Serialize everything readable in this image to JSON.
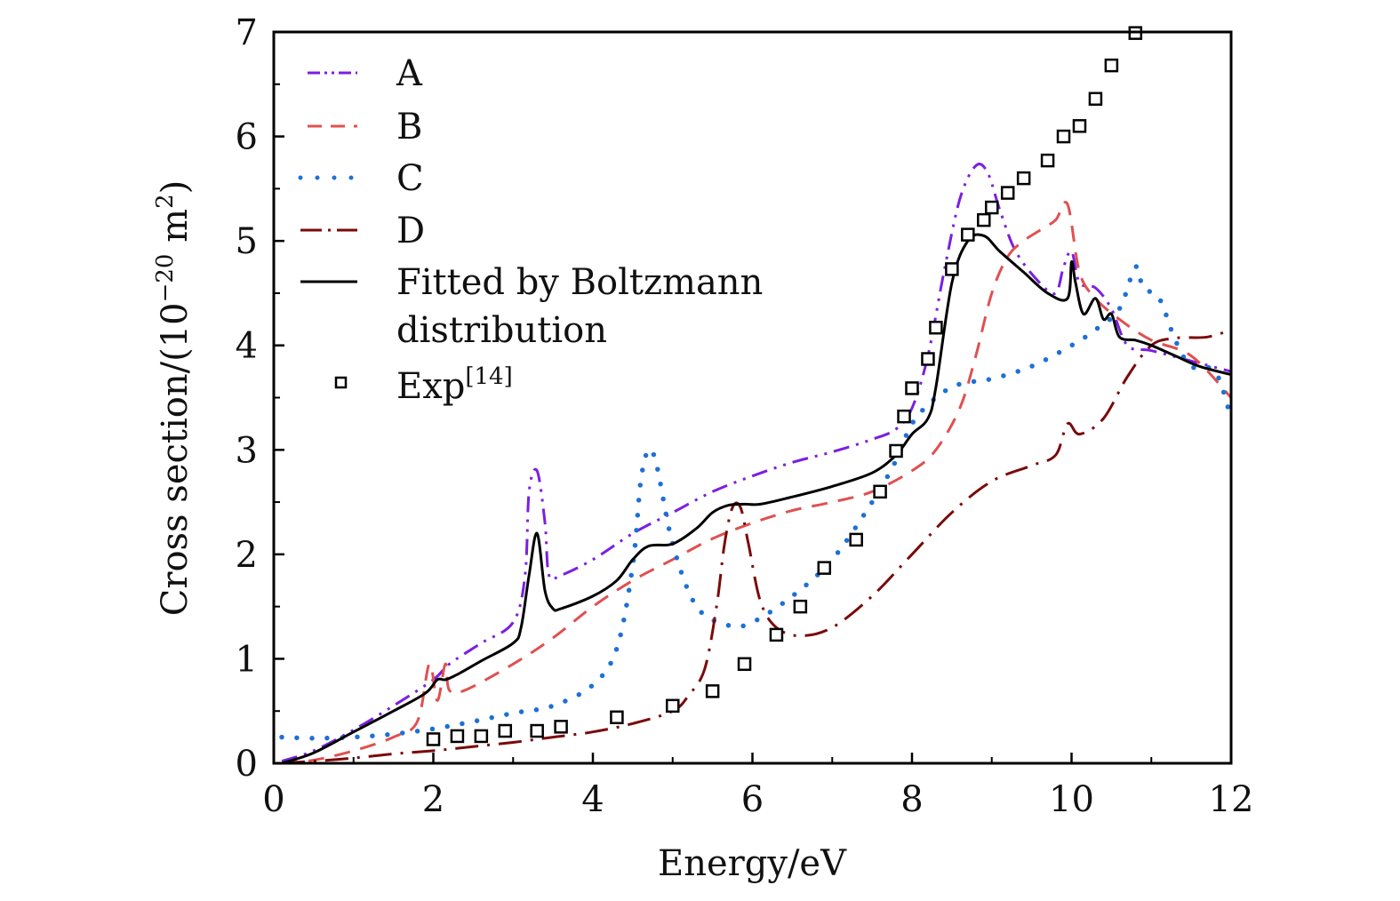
{
  "chart_data": {
    "type": "line",
    "title": "",
    "xlabel": "Energy/eV",
    "ylabel": "Cross section/(10",
    "ylabel_sup": "−20",
    "ylabel_tail": " m",
    "ylabel_sup2": "2",
    "ylabel_close": ")",
    "xlim": [
      0,
      12
    ],
    "ylim": [
      0,
      7
    ],
    "xticks": [
      "0",
      "2",
      "4",
      "6",
      "8",
      "10",
      "12"
    ],
    "yticks": [
      "0",
      "1",
      "2",
      "3",
      "4",
      "5",
      "6",
      "7"
    ],
    "grid": false,
    "legend_position": "top-left",
    "series": [
      {
        "name": "A",
        "color": "#7b1fe0",
        "style": "dash-dot-dot",
        "x": [
          0.1,
          0.5,
          1.0,
          1.5,
          2.0,
          2.2,
          2.6,
          3.0,
          3.15,
          3.2,
          3.3,
          3.4,
          3.45,
          3.6,
          4.0,
          4.5,
          5.0,
          5.5,
          6.0,
          6.5,
          7.0,
          7.5,
          7.8,
          8.0,
          8.2,
          8.4,
          8.6,
          8.8,
          8.95,
          9.1,
          9.3,
          9.6,
          9.8,
          9.9,
          10.0,
          10.1,
          10.3,
          10.5,
          10.7,
          11.0,
          11.5,
          12.0
        ],
        "y": [
          0.02,
          0.12,
          0.32,
          0.55,
          0.8,
          0.95,
          1.15,
          1.35,
          1.8,
          2.6,
          2.8,
          2.3,
          1.8,
          1.8,
          1.95,
          2.2,
          2.4,
          2.6,
          2.75,
          2.88,
          2.98,
          3.1,
          3.2,
          3.4,
          3.9,
          4.7,
          5.4,
          5.72,
          5.65,
          5.3,
          4.9,
          4.6,
          4.5,
          4.75,
          4.9,
          4.6,
          4.55,
          4.35,
          4.0,
          3.95,
          3.85,
          3.75
        ]
      },
      {
        "name": "B",
        "color": "#e05050",
        "style": "dashed",
        "x": [
          0.1,
          0.5,
          1.0,
          1.5,
          1.8,
          1.95,
          2.05,
          2.15,
          2.2,
          2.4,
          3.0,
          3.5,
          4.0,
          4.5,
          5.0,
          5.5,
          6.0,
          6.5,
          7.0,
          7.5,
          8.0,
          8.3,
          8.6,
          8.8,
          9.0,
          9.2,
          9.4,
          9.6,
          9.8,
          9.95,
          10.1,
          10.3,
          10.6,
          11.0,
          11.5,
          12.0
        ],
        "y": [
          0.0,
          0.03,
          0.12,
          0.25,
          0.4,
          0.95,
          0.6,
          0.95,
          0.7,
          0.7,
          0.95,
          1.2,
          1.5,
          1.75,
          1.95,
          2.15,
          2.3,
          2.42,
          2.5,
          2.6,
          2.8,
          3.0,
          3.4,
          3.9,
          4.5,
          4.85,
          5.0,
          5.1,
          5.2,
          5.35,
          4.7,
          4.45,
          4.25,
          4.05,
          3.9,
          3.5
        ]
      },
      {
        "name": "C",
        "color": "#1e70d6",
        "style": "dotted",
        "x": [
          0.1,
          0.5,
          1.0,
          1.5,
          2.0,
          2.5,
          3.0,
          3.5,
          4.0,
          4.3,
          4.5,
          4.6,
          4.7,
          4.8,
          5.0,
          5.3,
          5.7,
          6.0,
          6.5,
          7.0,
          7.5,
          7.8,
          8.0,
          8.3,
          8.6,
          9.0,
          9.5,
          10.0,
          10.3,
          10.6,
          10.8,
          10.9,
          11.1,
          11.3,
          11.5,
          11.8,
          12.0
        ],
        "y": [
          0.25,
          0.24,
          0.25,
          0.28,
          0.33,
          0.4,
          0.48,
          0.55,
          0.75,
          1.1,
          1.9,
          2.7,
          3.0,
          2.85,
          2.1,
          1.5,
          1.32,
          1.35,
          1.6,
          1.95,
          2.5,
          2.9,
          3.25,
          3.5,
          3.63,
          3.68,
          3.8,
          4.0,
          4.15,
          4.35,
          4.75,
          4.55,
          4.45,
          4.05,
          3.8,
          3.75,
          3.3
        ]
      },
      {
        "name": "D",
        "color": "#7a0a0a",
        "style": "dash-dot",
        "x": [
          0.1,
          0.5,
          1.0,
          1.5,
          2.0,
          2.5,
          3.0,
          3.5,
          4.0,
          4.5,
          5.0,
          5.2,
          5.4,
          5.55,
          5.65,
          5.75,
          5.85,
          5.95,
          6.1,
          6.3,
          6.6,
          7.0,
          7.5,
          8.0,
          8.5,
          9.0,
          9.5,
          9.8,
          9.95,
          10.1,
          10.4,
          10.7,
          11.0,
          11.3,
          11.7,
          12.0
        ],
        "y": [
          0.0,
          0.02,
          0.05,
          0.09,
          0.12,
          0.16,
          0.2,
          0.25,
          0.3,
          0.38,
          0.5,
          0.65,
          0.9,
          1.5,
          2.1,
          2.45,
          2.45,
          2.1,
          1.55,
          1.3,
          1.22,
          1.3,
          1.6,
          2.0,
          2.4,
          2.7,
          2.85,
          2.95,
          3.25,
          3.15,
          3.3,
          3.7,
          4.0,
          4.07,
          4.08,
          4.15
        ]
      },
      {
        "name": "Fitted by Boltzmann distribution",
        "color": "#000000",
        "style": "solid",
        "x": [
          0.1,
          0.5,
          1.0,
          1.5,
          1.9,
          2.05,
          2.15,
          2.3,
          2.6,
          3.0,
          3.1,
          3.2,
          3.3,
          3.4,
          3.5,
          3.6,
          4.0,
          4.3,
          4.5,
          4.7,
          5.0,
          5.3,
          5.5,
          5.7,
          5.9,
          6.1,
          6.5,
          7.0,
          7.5,
          7.8,
          8.0,
          8.2,
          8.3,
          8.5,
          8.7,
          8.9,
          9.1,
          9.4,
          9.7,
          9.95,
          10.0,
          10.05,
          10.15,
          10.3,
          10.4,
          10.5,
          10.6,
          10.8,
          11.0,
          11.3,
          11.6,
          12.0
        ],
        "y": [
          0.0,
          0.1,
          0.3,
          0.5,
          0.67,
          0.8,
          0.8,
          0.85,
          0.98,
          1.15,
          1.3,
          1.8,
          2.2,
          1.65,
          1.48,
          1.48,
          1.6,
          1.75,
          1.95,
          2.08,
          2.1,
          2.25,
          2.4,
          2.47,
          2.48,
          2.48,
          2.55,
          2.65,
          2.78,
          2.95,
          3.15,
          3.3,
          3.6,
          4.6,
          5.0,
          5.05,
          4.9,
          4.7,
          4.5,
          4.45,
          4.8,
          4.6,
          4.3,
          4.45,
          4.25,
          4.3,
          4.08,
          4.05,
          4.0,
          3.9,
          3.8,
          3.72
        ]
      }
    ],
    "experiment": {
      "name": "Exp",
      "name_sup": "[14]",
      "marker": "square",
      "color": "#000000",
      "x": [
        2.0,
        2.3,
        2.6,
        2.9,
        3.3,
        3.6,
        4.3,
        5.0,
        5.5,
        5.9,
        6.3,
        6.6,
        6.9,
        7.3,
        7.6,
        7.8,
        7.9,
        8.0,
        8.2,
        8.3,
        8.5,
        8.7,
        8.9,
        9.0,
        9.2,
        9.4,
        9.7,
        9.9,
        10.1,
        10.3,
        10.5,
        10.8
      ],
      "y": [
        0.23,
        0.26,
        0.26,
        0.31,
        0.31,
        0.35,
        0.44,
        0.55,
        0.69,
        0.95,
        1.23,
        1.5,
        1.87,
        2.14,
        2.6,
        2.99,
        3.32,
        3.59,
        3.87,
        4.17,
        4.73,
        5.06,
        5.2,
        5.32,
        5.46,
        5.6,
        5.77,
        6.0,
        6.1,
        6.36,
        6.68,
        6.99
      ]
    },
    "legend": [
      {
        "label": "A"
      },
      {
        "label": "B"
      },
      {
        "label": "C"
      },
      {
        "label": "D"
      },
      {
        "label": "Fitted by Boltzmann",
        "label2": "distribution"
      },
      {
        "label": "Exp",
        "sup": "[14]"
      }
    ]
  }
}
